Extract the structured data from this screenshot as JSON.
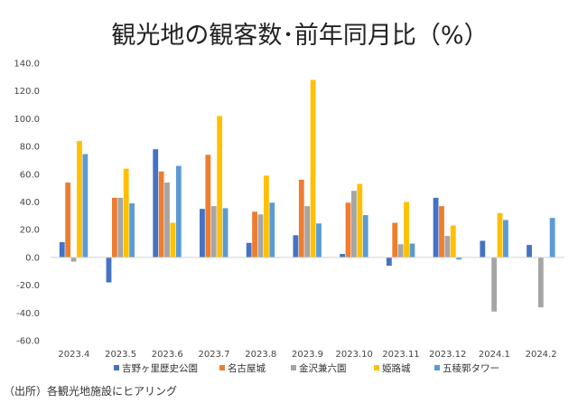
{
  "chart_data": {
    "type": "bar",
    "title": "観光地の観客数･前年同月比（%）",
    "categories": [
      "2023.4",
      "2023.5",
      "2023.6",
      "2023.7",
      "2023.8",
      "2023.9",
      "2023.10",
      "2023.11",
      "2023.12",
      "2024.1",
      "2024.2"
    ],
    "series": [
      {
        "name": "吉野ヶ里歴史公園",
        "color": "#4472c4",
        "values": [
          11,
          -18,
          78,
          35,
          10.5,
          16,
          2.5,
          -6,
          43,
          12,
          9
        ]
      },
      {
        "name": "名古屋城",
        "color": "#ed7d31",
        "values": [
          54,
          43,
          62,
          74,
          33,
          56,
          39.5,
          25,
          37,
          null,
          null
        ]
      },
      {
        "name": "金沢兼六園",
        "color": "#a5a5a5",
        "values": [
          -3,
          43,
          54,
          37,
          31,
          37,
          48,
          9.5,
          15.5,
          -39,
          -36
        ]
      },
      {
        "name": "姫路城",
        "color": "#ffc000",
        "values": [
          84,
          64,
          25,
          102,
          59,
          128,
          53,
          40,
          23,
          32,
          null
        ]
      },
      {
        "name": "五稜郭タワー",
        "color": "#5b9bd5",
        "values": [
          74.5,
          39,
          66,
          35.5,
          39.5,
          24.5,
          30.5,
          10,
          -1.5,
          27,
          28.5
        ]
      }
    ],
    "ylim": [
      -60,
      140
    ],
    "yticks": [
      "-60.0",
      "-40.0",
      "-20.0",
      "0.0",
      "20.0",
      "40.0",
      "60.0",
      "80.0",
      "100.0",
      "120.0",
      "140.0"
    ],
    "xlabel": "",
    "ylabel": "",
    "grid": false,
    "legend": "bottom"
  },
  "source": "（出所）各観光地施設にヒアリング"
}
